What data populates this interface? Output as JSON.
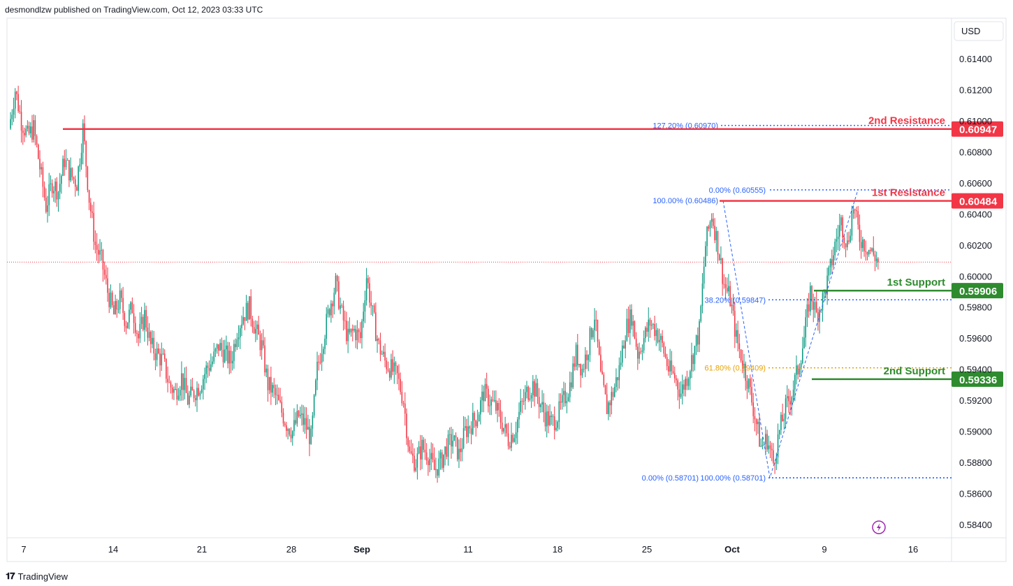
{
  "header": {
    "published_text": "desmondlzw published on TradingView.com, Oct 12, 2023 03:33 UTC"
  },
  "currency_button": {
    "label": "USD"
  },
  "footer": {
    "brand": "TradingView"
  },
  "colors": {
    "up": "#089981",
    "down": "#f23645",
    "resistance": "#f23645",
    "support": "#2e8b2e",
    "fib_blue": "#2962ff",
    "fib_orange": "#e6a000",
    "last_price_line": "#f23645",
    "grid_border": "#e0e3eb",
    "axis_text": "#131722"
  },
  "chart_data": {
    "type": "candlestick",
    "y_axis": {
      "ylim": [
        0.5833,
        0.6155
      ],
      "ticks": [
        0.614,
        0.612,
        0.61,
        0.608,
        0.606,
        0.604,
        0.602,
        0.6,
        0.598,
        0.596,
        0.594,
        0.592,
        0.59,
        0.588,
        0.586,
        0.584
      ],
      "tick_labels": [
        "0.61400",
        "0.61200",
        "0.61000",
        "0.60800",
        "0.60600",
        "0.60400",
        "0.60200",
        "0.60000",
        "0.59800",
        "0.59600",
        "0.59400",
        "0.59200",
        "0.59000",
        "0.58800",
        "0.58600",
        "0.58400"
      ]
    },
    "x_axis": {
      "tick_labels": [
        {
          "label": "7",
          "bold": false
        },
        {
          "label": "14",
          "bold": false
        },
        {
          "label": "21",
          "bold": false
        },
        {
          "label": "28",
          "bold": false
        },
        {
          "label": "Sep",
          "bold": true
        },
        {
          "label": "11",
          "bold": false
        },
        {
          "label": "18",
          "bold": false
        },
        {
          "label": "25",
          "bold": false
        },
        {
          "label": "Oct",
          "bold": true
        },
        {
          "label": "9",
          "bold": false
        },
        {
          "label": "16",
          "bold": false
        }
      ]
    },
    "price_path": [
      0.6095,
      0.612,
      0.61,
      0.609,
      0.6095,
      0.607,
      0.6045,
      0.606,
      0.6055,
      0.6075,
      0.6065,
      0.606,
      0.6095,
      0.605,
      0.602,
      0.601,
      0.599,
      0.5975,
      0.5985,
      0.597,
      0.598,
      0.596,
      0.5975,
      0.5955,
      0.595,
      0.5945,
      0.593,
      0.5925,
      0.5935,
      0.592,
      0.5925,
      0.593,
      0.594,
      0.5945,
      0.5955,
      0.595,
      0.5945,
      0.5965,
      0.5975,
      0.598,
      0.5965,
      0.5955,
      0.593,
      0.5925,
      0.5915,
      0.5905,
      0.59,
      0.591,
      0.5905,
      0.5895,
      0.594,
      0.596,
      0.598,
      0.5995,
      0.5975,
      0.596,
      0.5965,
      0.596,
      0.6,
      0.5975,
      0.5955,
      0.5945,
      0.594,
      0.5935,
      0.592,
      0.5885,
      0.588,
      0.589,
      0.5885,
      0.5875,
      0.588,
      0.589,
      0.5895,
      0.5885,
      0.59,
      0.5905,
      0.591,
      0.5925,
      0.592,
      0.5915,
      0.5905,
      0.5895,
      0.59,
      0.5915,
      0.5925,
      0.593,
      0.592,
      0.591,
      0.5905,
      0.591,
      0.592,
      0.593,
      0.595,
      0.594,
      0.5955,
      0.5975,
      0.5935,
      0.5915,
      0.5925,
      0.594,
      0.5965,
      0.5975,
      0.595,
      0.596,
      0.597,
      0.5965,
      0.5955,
      0.594,
      0.5935,
      0.5925,
      0.5935,
      0.595,
      0.5965,
      0.602,
      0.604,
      0.602,
      0.5995,
      0.5985,
      0.596,
      0.5945,
      0.593,
      0.591,
      0.589,
      0.5895,
      0.588,
      0.59,
      0.5915,
      0.5925,
      0.594,
      0.596,
      0.599,
      0.5975,
      0.5985,
      0.6,
      0.602,
      0.6035,
      0.602,
      0.6045,
      0.6025,
      0.602,
      0.6015,
      0.601
    ],
    "last_price": 0.6009,
    "horizontal_levels": [
      {
        "name": "2nd Resistance",
        "label": "2nd Resistance",
        "value": 0.60947,
        "value_label": "0.60947",
        "kind": "resistance"
      },
      {
        "name": "1st Resistance",
        "label": "1st Resistance",
        "value": 0.60484,
        "value_label": "0.60484",
        "kind": "resistance"
      },
      {
        "name": "1st Support",
        "label": "1st Support",
        "value": 0.59906,
        "value_label": "0.59906",
        "kind": "support"
      },
      {
        "name": "2nd Support",
        "label": "2nd Support",
        "value": 0.59336,
        "value_label": "0.59336",
        "kind": "support"
      }
    ],
    "fib_levels": [
      {
        "label": "127.20% (0.60970)",
        "value": 0.6097,
        "color": "#2962ff"
      },
      {
        "label": "0.00% (0.60555)",
        "value": 0.60555,
        "color": "#2962ff"
      },
      {
        "label": "100.00% (0.60486)",
        "value": 0.60486,
        "color": "#2962ff"
      },
      {
        "label": "38.20% (0.59847)",
        "value": 0.59847,
        "color": "#2962ff"
      },
      {
        "label": "61.80% (0.59409)",
        "value": 0.59409,
        "color": "#e6a000"
      },
      {
        "label": "0.00% (0.58701)",
        "value": 0.58701,
        "color": "#2962ff"
      },
      {
        "label": "100.00% (0.58701)",
        "value": 0.58701,
        "color": "#2962ff"
      }
    ]
  }
}
